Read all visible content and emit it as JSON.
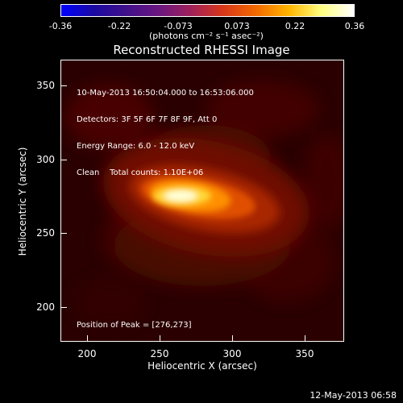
{
  "colorbar": {
    "ticks": [
      "-0.36",
      "-0.22",
      "-0.073",
      "0.073",
      "0.22",
      "0.36"
    ],
    "units": "(photons cm⁻² s⁻¹ asec⁻²)",
    "colors": [
      "#0000ff",
      "#1a0aa0",
      "#40108a",
      "#6a1780",
      "#a0205a",
      "#d83818",
      "#f26a00",
      "#ffb400",
      "#ffff80",
      "#ffffff"
    ]
  },
  "title": "Reconstructed RHESSI Image",
  "info": {
    "time": "10-May-2013 16:50:04.000 to 16:53:06.000",
    "detectors": "Detectors: 3F 5F 6F 7F 8F 9F, Att 0",
    "energy": "Energy Range: 6.0 - 12.0 keV",
    "clean": "Clean    Total counts: 1.10E+06"
  },
  "peak": "Position of Peak = [276,273]",
  "axes": {
    "xlabel": "Heliocentric X (arcsec)",
    "ylabel": "Heliocentric Y (arcsec)",
    "xticks": [
      "200",
      "250",
      "300",
      "350"
    ],
    "yticks": [
      "350",
      "300",
      "250",
      "200"
    ]
  },
  "timestamp": "12-May-2013 06:58"
}
